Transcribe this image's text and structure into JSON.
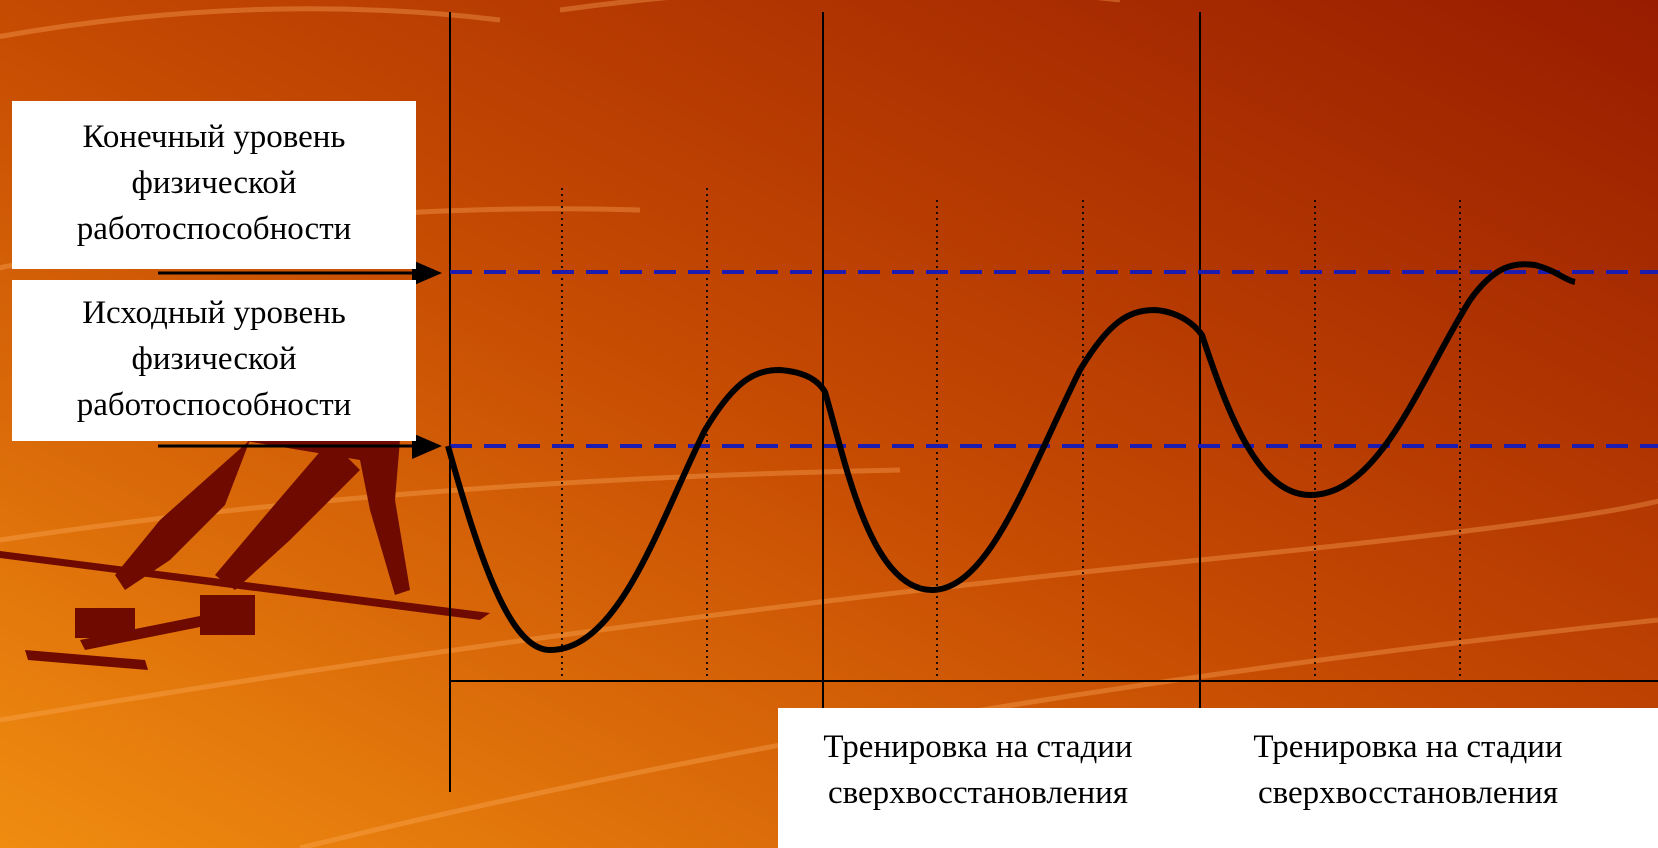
{
  "labels": {
    "final_level": [
      "Конечный уровень",
      "физической",
      "работоспособности"
    ],
    "initial_level": [
      "Исходный уровень",
      "физической",
      "работоспособности"
    ]
  },
  "captions": [
    [
      "Тренировка на стадии",
      "сверхвосстановления"
    ],
    [
      "Тренировка на стадии",
      "сверхвосстановления"
    ]
  ],
  "colors": {
    "background_start": "#e8820c",
    "background_end": "#9a2200",
    "dashed_line": "#1c1cb0",
    "curve": "#000000",
    "silhouette": "#6e0a00"
  },
  "icons": [
    "sprinter-silhouette-icon",
    "arrow-right-icon"
  ]
}
